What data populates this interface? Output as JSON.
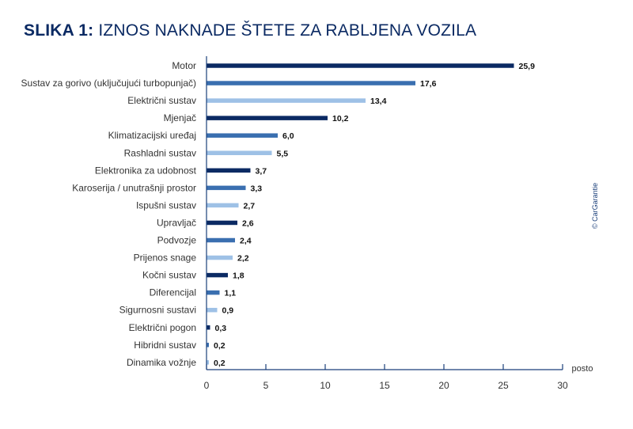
{
  "title": {
    "prefix": "SLIKA 1:",
    "text": " IZNOS NAKNADE ŠTETE ZA RABLJENA VOZILA"
  },
  "credit": "© CarGarantie",
  "colors": {
    "title": "#0b2a63",
    "dark": "#0b2a63",
    "mid": "#3a6fb0",
    "light": "#9ec1e6",
    "axis": "#1a3f7a"
  },
  "chart_data": {
    "type": "bar",
    "orientation": "horizontal",
    "title": "SLIKA 1: IZNOS NAKNADE ŠTETE ZA RABLJENA VOZILA",
    "xlabel": "posto",
    "ylabel": "",
    "xlim": [
      0,
      30
    ],
    "xticks": [
      0,
      5,
      10,
      15,
      20,
      25,
      30
    ],
    "grid": false,
    "categories": [
      "Motor",
      "Sustav za gorivo (uključujući turbopunjač)",
      "Električni sustav",
      "Mjenjač",
      "Klimatizacijski uređaj",
      "Rashladni sustav",
      "Elektronika za udobnost",
      "Karoserija / unutrašnji prostor",
      "Ispušni sustav",
      "Upravljač",
      "Podvozje",
      "Prijenos snage",
      "Kočni sustav",
      "Diferencijal",
      "Sigurnosni sustavi",
      "Električni pogon",
      "Hibridni sustav",
      "Dinamika vožnje"
    ],
    "values": [
      25.9,
      17.6,
      13.4,
      10.2,
      6.0,
      5.5,
      3.7,
      3.3,
      2.7,
      2.6,
      2.4,
      2.2,
      1.8,
      1.1,
      0.9,
      0.3,
      0.2,
      0.2
    ],
    "value_labels": [
      "25,9",
      "17,6",
      "13,4",
      "10,2",
      "6,0",
      "5,5",
      "3,7",
      "3,3",
      "2,7",
      "2,6",
      "2,4",
      "2,2",
      "1,8",
      "1,1",
      "0,9",
      "0,3",
      "0,2",
      "0,2"
    ],
    "bar_color_pattern": [
      "dark",
      "mid",
      "light"
    ]
  }
}
